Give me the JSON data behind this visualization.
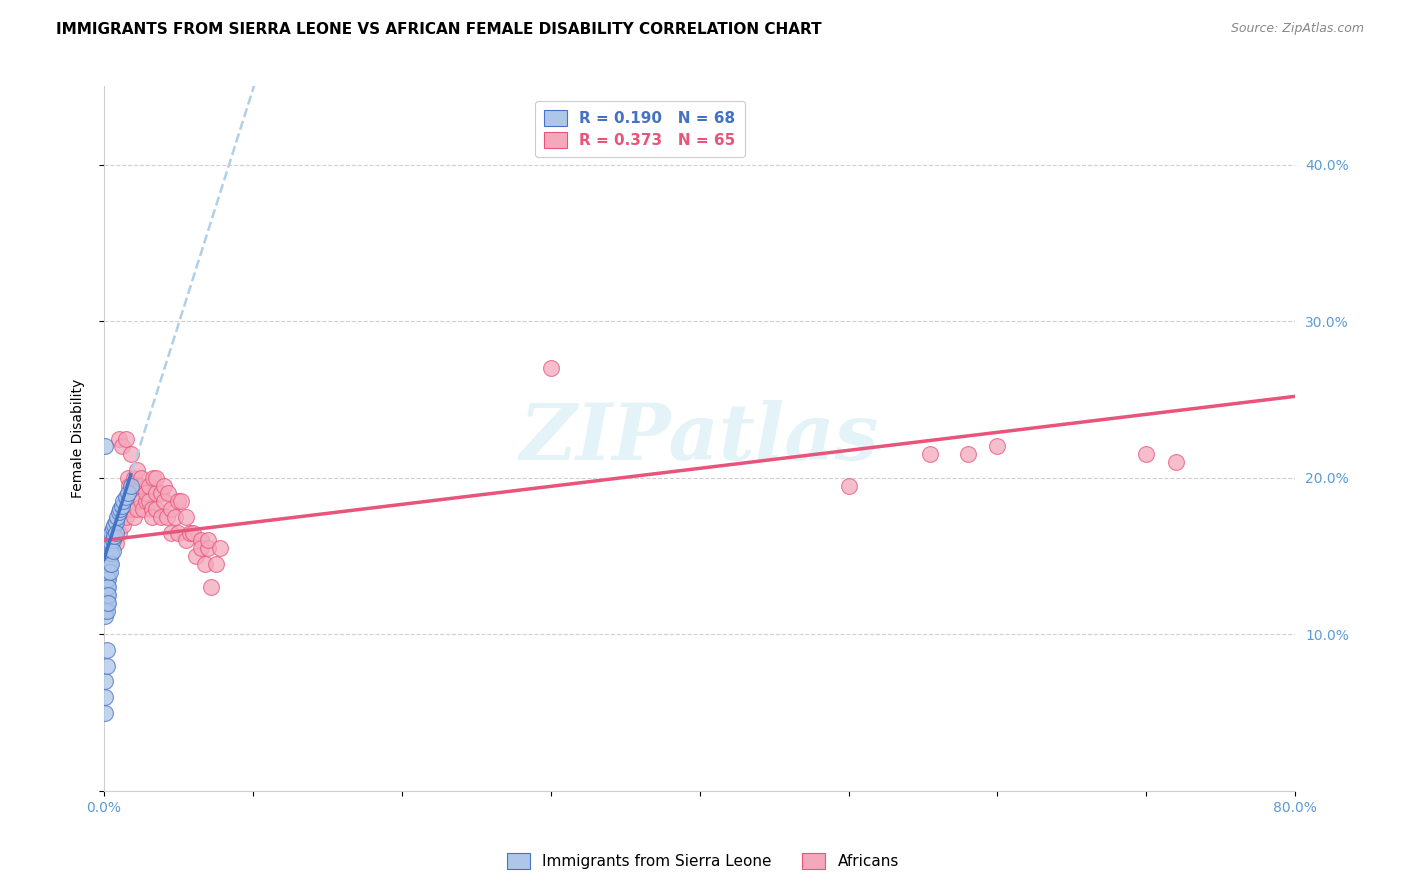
{
  "title": "IMMIGRANTS FROM SIERRA LEONE VS AFRICAN FEMALE DISABILITY CORRELATION CHART",
  "source": "Source: ZipAtlas.com",
  "tick_color": "#5b9bd5",
  "ylabel": "Female Disability",
  "xlim": [
    0,
    0.8
  ],
  "ylim": [
    0,
    0.45
  ],
  "xticks": [
    0.0,
    0.1,
    0.2,
    0.3,
    0.4,
    0.5,
    0.6,
    0.7,
    0.8
  ],
  "yticks": [
    0.0,
    0.1,
    0.2,
    0.3,
    0.4
  ],
  "ytick_labels": [
    "",
    "10.0%",
    "20.0%",
    "30.0%",
    "40.0%"
  ],
  "xtick_labels": [
    "0.0%",
    "",
    "",
    "",
    "",
    "",
    "",
    "",
    "80.0%"
  ],
  "blue_color": "#aec6e8",
  "pink_color": "#f4a8bc",
  "blue_line_color": "#4472c4",
  "pink_line_color": "#e8547a",
  "dashed_line_color": "#b0cfe8",
  "R_blue": 0.19,
  "N_blue": 68,
  "R_pink": 0.373,
  "N_pink": 65,
  "legend_label_blue": "Immigrants from Sierra Leone",
  "legend_label_pink": "Africans",
  "watermark": "ZIPatlas",
  "blue_intercept": 0.148,
  "blue_slope": 3.0,
  "pink_intercept": 0.16,
  "pink_slope": 0.115,
  "blue_scatter_x": [
    0.001,
    0.001,
    0.001,
    0.001,
    0.001,
    0.001,
    0.001,
    0.001,
    0.001,
    0.001,
    0.001,
    0.001,
    0.001,
    0.001,
    0.001,
    0.001,
    0.001,
    0.001,
    0.001,
    0.001,
    0.002,
    0.002,
    0.002,
    0.002,
    0.002,
    0.002,
    0.002,
    0.002,
    0.002,
    0.002,
    0.003,
    0.003,
    0.003,
    0.003,
    0.003,
    0.003,
    0.003,
    0.003,
    0.004,
    0.004,
    0.004,
    0.004,
    0.004,
    0.005,
    0.005,
    0.005,
    0.005,
    0.006,
    0.006,
    0.006,
    0.007,
    0.007,
    0.008,
    0.008,
    0.009,
    0.01,
    0.011,
    0.012,
    0.013,
    0.015,
    0.016,
    0.018,
    0.001,
    0.001,
    0.001,
    0.001,
    0.002,
    0.002
  ],
  "blue_scatter_y": [
    0.15,
    0.152,
    0.155,
    0.157,
    0.16,
    0.148,
    0.145,
    0.143,
    0.14,
    0.138,
    0.135,
    0.132,
    0.13,
    0.128,
    0.125,
    0.122,
    0.12,
    0.118,
    0.115,
    0.112,
    0.155,
    0.158,
    0.15,
    0.145,
    0.14,
    0.135,
    0.13,
    0.125,
    0.12,
    0.115,
    0.155,
    0.15,
    0.145,
    0.14,
    0.135,
    0.13,
    0.125,
    0.12,
    0.16,
    0.155,
    0.15,
    0.145,
    0.14,
    0.165,
    0.158,
    0.152,
    0.145,
    0.168,
    0.16,
    0.153,
    0.17,
    0.163,
    0.172,
    0.165,
    0.175,
    0.178,
    0.18,
    0.182,
    0.185,
    0.188,
    0.19,
    0.195,
    0.22,
    0.07,
    0.06,
    0.05,
    0.08,
    0.09
  ],
  "pink_scatter_x": [
    0.005,
    0.008,
    0.01,
    0.01,
    0.012,
    0.013,
    0.015,
    0.015,
    0.015,
    0.016,
    0.017,
    0.018,
    0.018,
    0.02,
    0.02,
    0.02,
    0.022,
    0.022,
    0.023,
    0.025,
    0.025,
    0.025,
    0.026,
    0.028,
    0.028,
    0.03,
    0.03,
    0.032,
    0.032,
    0.033,
    0.035,
    0.035,
    0.035,
    0.038,
    0.038,
    0.04,
    0.04,
    0.042,
    0.043,
    0.045,
    0.045,
    0.048,
    0.05,
    0.05,
    0.052,
    0.055,
    0.055,
    0.058,
    0.06,
    0.062,
    0.065,
    0.065,
    0.068,
    0.07,
    0.07,
    0.072,
    0.075,
    0.078,
    0.3,
    0.5,
    0.555,
    0.58,
    0.6,
    0.7,
    0.72
  ],
  "pink_scatter_y": [
    0.155,
    0.158,
    0.165,
    0.225,
    0.22,
    0.17,
    0.175,
    0.225,
    0.18,
    0.2,
    0.195,
    0.18,
    0.215,
    0.2,
    0.19,
    0.175,
    0.205,
    0.18,
    0.195,
    0.195,
    0.185,
    0.2,
    0.18,
    0.185,
    0.19,
    0.195,
    0.185,
    0.18,
    0.175,
    0.2,
    0.19,
    0.18,
    0.2,
    0.175,
    0.19,
    0.185,
    0.195,
    0.175,
    0.19,
    0.18,
    0.165,
    0.175,
    0.185,
    0.165,
    0.185,
    0.16,
    0.175,
    0.165,
    0.165,
    0.15,
    0.16,
    0.155,
    0.145,
    0.155,
    0.16,
    0.13,
    0.145,
    0.155,
    0.27,
    0.195,
    0.215,
    0.215,
    0.22,
    0.215,
    0.21
  ],
  "title_fontsize": 11,
  "axis_label_fontsize": 10,
  "tick_fontsize": 10,
  "legend_fontsize": 11
}
